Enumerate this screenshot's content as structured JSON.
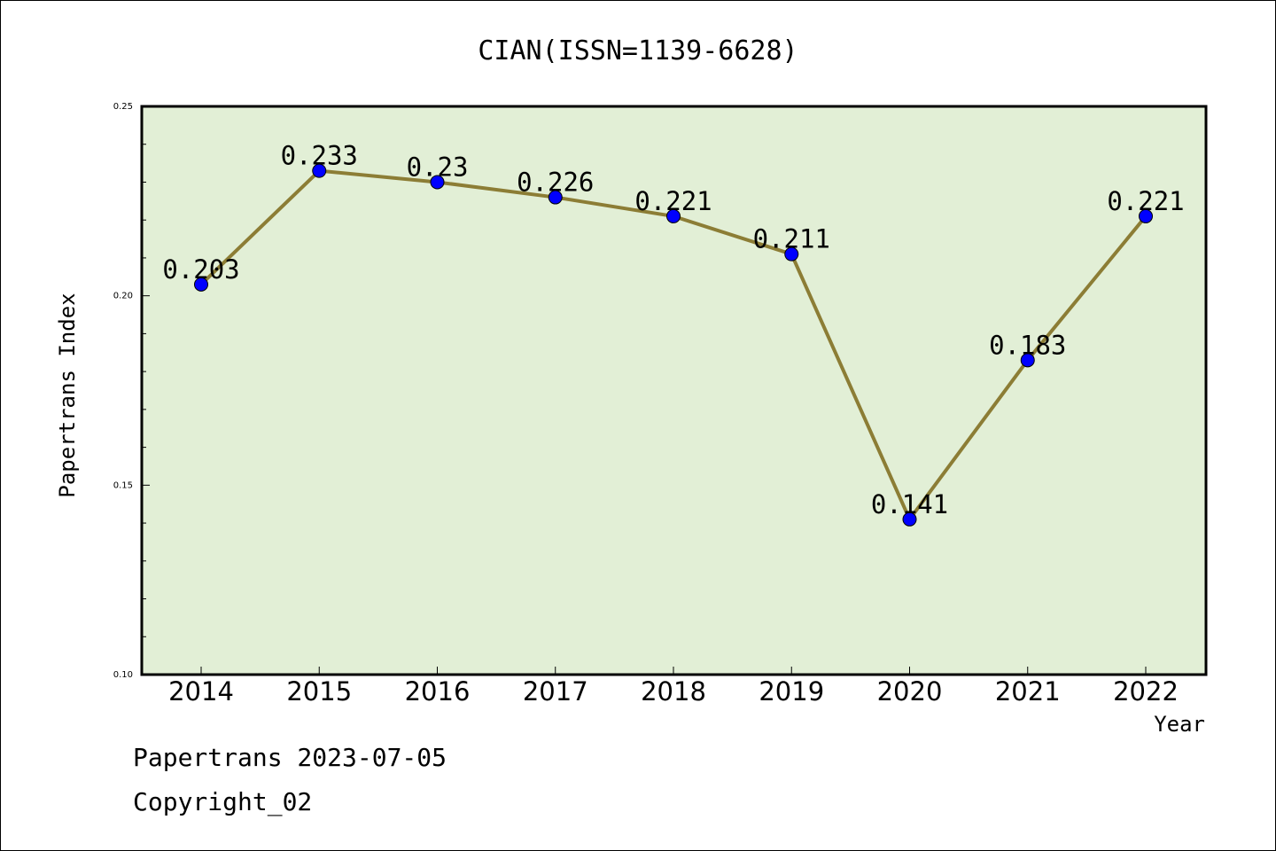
{
  "chart_data": {
    "type": "line",
    "title": "CIAN(ISSN=1139-6628)",
    "xlabel": "Year",
    "ylabel": "Papertrans Index",
    "categories": [
      "2014",
      "2015",
      "2016",
      "2017",
      "2018",
      "2019",
      "2020",
      "2021",
      "2022"
    ],
    "values": [
      0.203,
      0.233,
      0.23,
      0.226,
      0.221,
      0.211,
      0.141,
      0.183,
      0.221
    ],
    "data_labels": [
      "0.203",
      "0.233",
      "0.23",
      "0.226",
      "0.221",
      "0.211",
      "0.141",
      "0.183",
      "0.221"
    ],
    "ylim": [
      0.1,
      0.25
    ],
    "yticks": [
      0.1,
      0.15,
      0.2,
      0.25
    ],
    "ytick_labels": [
      "0.10",
      "0.15",
      "0.20",
      "0.25"
    ],
    "grid": false,
    "colors": {
      "plot_background": "#e2efd6",
      "line": "#8c7d35",
      "marker": "#0000ff"
    }
  },
  "footer": {
    "line1": "Papertrans 2023-07-05",
    "line2": "Copyright_02"
  }
}
